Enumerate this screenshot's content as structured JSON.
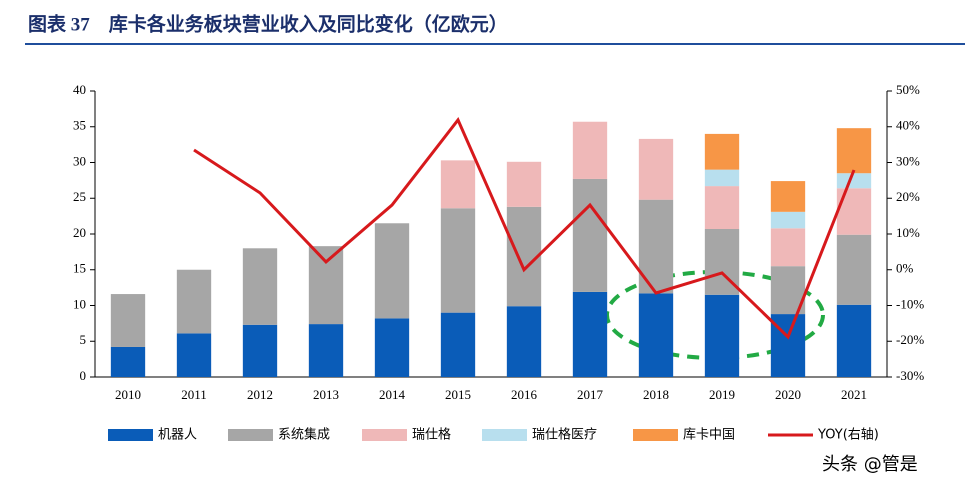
{
  "chart_data": {
    "type": "bar",
    "title": "图表 37　库卡各业务板块营业收入及同比变化（亿欧元）",
    "watermark": "头条 @管是",
    "categories": [
      "2010",
      "2011",
      "2012",
      "2013",
      "2014",
      "2015",
      "2016",
      "2017",
      "2018",
      "2019",
      "2020",
      "2021"
    ],
    "stacked": true,
    "series": [
      {
        "name": "机器人",
        "color": "#0a5cb8",
        "values": [
          4.2,
          6.1,
          7.3,
          7.4,
          8.2,
          9.0,
          9.9,
          11.9,
          11.7,
          11.5,
          8.8,
          10.1
        ]
      },
      {
        "name": "系统集成",
        "color": "#a6a6a6",
        "values": [
          7.4,
          8.9,
          10.7,
          10.9,
          13.3,
          14.6,
          13.9,
          15.8,
          13.1,
          9.2,
          6.7,
          9.8
        ]
      },
      {
        "name": "瑞仕格",
        "color": "#efb8b8",
        "values": [
          null,
          null,
          null,
          null,
          null,
          6.7,
          6.3,
          8.0,
          8.5,
          6.0,
          5.3,
          6.5
        ]
      },
      {
        "name": "瑞仕格医疗",
        "color": "#b8dfee",
        "values": [
          null,
          null,
          null,
          null,
          null,
          null,
          null,
          null,
          null,
          2.3,
          2.3,
          2.1
        ]
      },
      {
        "name": "库卡中国",
        "color": "#f79646",
        "values": [
          null,
          null,
          null,
          null,
          null,
          null,
          null,
          null,
          null,
          5.0,
          4.3,
          6.3
        ]
      },
      {
        "name": "YOY(右轴)",
        "color": "#d7191c",
        "type": "line",
        "axis": "y2",
        "values": [
          null,
          33.5,
          21.5,
          2.2,
          18.1,
          41.9,
          0,
          18.1,
          -6.5,
          -0.9,
          -18.8,
          27.9
        ]
      }
    ],
    "ylim": [
      0,
      40
    ],
    "yticks": [
      0,
      5,
      10,
      15,
      20,
      25,
      30,
      35,
      40
    ],
    "y2lim": [
      -30,
      50
    ],
    "y2ticks": [
      {
        "value": -30,
        "label": "-30%"
      },
      {
        "value": -20,
        "label": "-20%"
      },
      {
        "value": -10,
        "label": "-10%"
      },
      {
        "value": 0,
        "label": "0%"
      },
      {
        "value": 10,
        "label": "10%"
      },
      {
        "value": 20,
        "label": "20%"
      },
      {
        "value": 30,
        "label": "30%"
      },
      {
        "value": 40,
        "label": "40%"
      },
      {
        "value": 50,
        "label": "50%"
      }
    ]
  }
}
